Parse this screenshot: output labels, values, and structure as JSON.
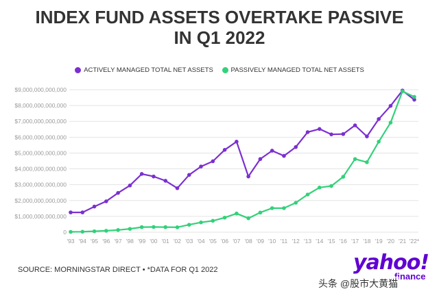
{
  "header": {
    "title_line1": "INDEX FUND ASSETS OVERTAKE PASSIVE",
    "title_line2": "IN Q1 2022"
  },
  "footer": {
    "source": "SOURCE: MORNINGSTAR DIRECT • *DATA FOR Q1 2022"
  },
  "brand": {
    "logo_text": "yahoo!",
    "logo_sub": "finance"
  },
  "watermark": {
    "text": "头条 @股市大黄猫"
  },
  "colors": {
    "active": "#7b2fd0",
    "passive": "#33d17a",
    "grid": "#e3e3e3",
    "tick": "#9a9a9a"
  },
  "chart_data": {
    "type": "line",
    "title": "INDEX FUND ASSETS OVERTAKE PASSIVE IN Q1 2022",
    "xlabel": "",
    "ylabel": "",
    "ylim": [
      0,
      9000000000000
    ],
    "grid": true,
    "legend_position": "top-center",
    "categories": [
      "'93",
      "'94",
      "'95",
      "'96",
      "'97",
      "'98",
      "'99",
      "'00",
      "'01",
      "'02",
      "'03",
      "'04",
      "'05",
      "'06",
      "'07",
      "'08",
      "'09",
      "'10",
      "'11",
      "'12",
      "'13",
      "'14",
      "'15",
      "'16",
      "'17",
      "'18",
      "'19",
      "'20",
      "'21",
      "'22*"
    ],
    "y_ticks": [
      0,
      1000000000000,
      2000000000000,
      3000000000000,
      4000000000000,
      5000000000000,
      6000000000000,
      7000000000000,
      8000000000000,
      9000000000000
    ],
    "y_tick_labels": [
      "0",
      "$1,000,000,000,000",
      "$2,000,000,000,000",
      "$3,000,000,000,000",
      "$4,000,000,000,000",
      "$5,000,000,000,000",
      "$6,000,000,000,000",
      "$7,000,000,000,000",
      "$8,000,000,000,000",
      "$9,000,000,000,000"
    ],
    "series": [
      {
        "name": "ACTIVELY MANAGED TOTAL NET ASSETS",
        "values": [
          1250000000000,
          1250000000000,
          1620000000000,
          1950000000000,
          2480000000000,
          2950000000000,
          3680000000000,
          3520000000000,
          3250000000000,
          2780000000000,
          3620000000000,
          4150000000000,
          4480000000000,
          5200000000000,
          5720000000000,
          3520000000000,
          4620000000000,
          5150000000000,
          4820000000000,
          5380000000000,
          6320000000000,
          6520000000000,
          6180000000000,
          6200000000000,
          6750000000000,
          6050000000000,
          7150000000000,
          7980000000000,
          8950000000000,
          8370000000000
        ]
      },
      {
        "name": "PASSIVELY MANAGED TOTAL NET ASSETS",
        "values": [
          20000000000,
          30000000000,
          60000000000,
          90000000000,
          140000000000,
          210000000000,
          320000000000,
          330000000000,
          320000000000,
          310000000000,
          470000000000,
          620000000000,
          720000000000,
          920000000000,
          1180000000000,
          880000000000,
          1240000000000,
          1520000000000,
          1520000000000,
          1860000000000,
          2380000000000,
          2820000000000,
          2920000000000,
          3500000000000,
          4620000000000,
          4420000000000,
          5720000000000,
          6920000000000,
          8900000000000,
          8550000000000
        ]
      }
    ]
  }
}
